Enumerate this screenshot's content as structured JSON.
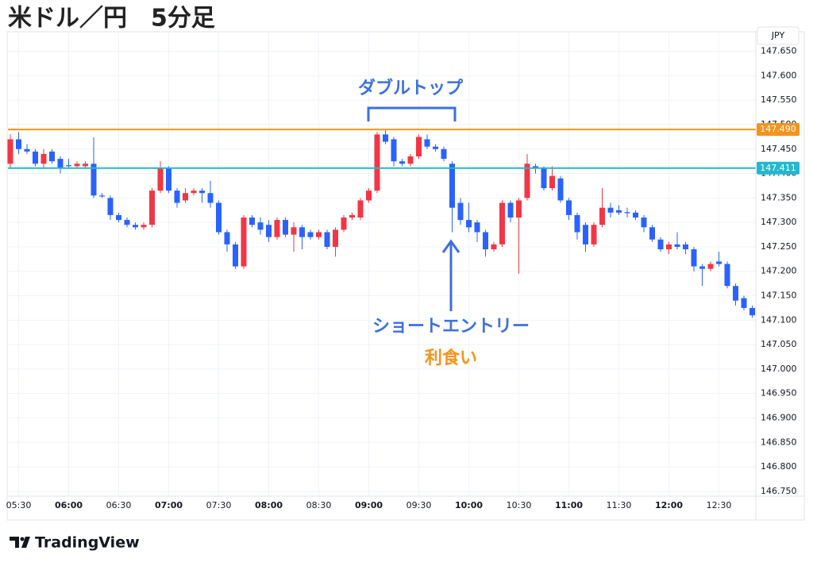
{
  "chart_data": {
    "type": "candlestick",
    "title": "米ドル／円　5分足",
    "currency": "JPY",
    "brand": "TradingView",
    "annotations": {
      "pattern": "ダブルトップ",
      "entry": "ショートエントリー",
      "exit": "利食い"
    },
    "up_color": "#f23645",
    "down_color": "#2962ff",
    "grid": true,
    "x": [
      "05:25",
      "05:30",
      "05:35",
      "05:40",
      "05:45",
      "05:50",
      "05:55",
      "06:00",
      "06:05",
      "06:10",
      "06:15",
      "06:20",
      "06:25",
      "06:30",
      "06:35",
      "06:40",
      "06:45",
      "06:50",
      "06:55",
      "07:00",
      "07:05",
      "07:10",
      "07:15",
      "07:20",
      "07:25",
      "07:30",
      "07:35",
      "07:40",
      "07:45",
      "07:50",
      "07:55",
      "08:00",
      "08:05",
      "08:10",
      "08:15",
      "08:20",
      "08:25",
      "08:30",
      "08:35",
      "08:40",
      "08:45",
      "08:50",
      "08:55",
      "09:00",
      "09:05",
      "09:10",
      "09:15",
      "09:20",
      "09:25",
      "09:30",
      "09:35",
      "09:40",
      "09:45",
      "09:50",
      "09:55",
      "10:00",
      "10:05",
      "10:10",
      "10:15",
      "10:20",
      "10:25",
      "10:30",
      "10:35",
      "10:40",
      "10:45",
      "10:50",
      "10:55",
      "11:00",
      "11:05",
      "11:10",
      "11:15",
      "11:20",
      "11:25",
      "11:30",
      "11:35",
      "11:40",
      "11:45",
      "11:50",
      "11:55",
      "12:00",
      "12:05",
      "12:10",
      "12:15",
      "12:20",
      "12:25",
      "12:30",
      "12:35",
      "12:40",
      "12:45",
      "12:50"
    ],
    "open": [
      147.42,
      147.47,
      147.45,
      147.445,
      147.42,
      147.445,
      147.43,
      147.417,
      147.415,
      147.415,
      147.42,
      147.355,
      147.35,
      147.315,
      147.305,
      147.295,
      147.29,
      147.295,
      147.365,
      147.41,
      147.365,
      147.345,
      147.36,
      147.365,
      147.36,
      147.34,
      147.28,
      147.255,
      147.21,
      147.31,
      147.3,
      147.295,
      147.27,
      147.305,
      147.275,
      147.29,
      147.28,
      147.27,
      147.28,
      147.25,
      147.285,
      147.31,
      147.31,
      147.345,
      147.365,
      147.48,
      147.47,
      147.425,
      147.42,
      147.435,
      147.47,
      147.455,
      147.45,
      147.42,
      147.34,
      147.305,
      147.3,
      147.28,
      147.245,
      147.255,
      147.34,
      147.31,
      147.35,
      147.415,
      147.41,
      147.37,
      147.39,
      147.345,
      147.315,
      147.295,
      147.255,
      147.295,
      147.33,
      147.325,
      147.321,
      147.32,
      147.31,
      147.29,
      147.265,
      147.245,
      147.255,
      147.255,
      147.245,
      147.21,
      147.205,
      147.22,
      147.215,
      147.17,
      147.145,
      147.125
    ],
    "high": [
      147.48,
      147.485,
      147.46,
      147.45,
      147.45,
      147.45,
      147.435,
      147.43,
      147.425,
      147.425,
      147.474,
      147.36,
      147.355,
      147.32,
      147.31,
      147.3,
      147.3,
      147.37,
      147.425,
      147.415,
      147.37,
      147.37,
      147.37,
      147.37,
      147.385,
      147.345,
      147.285,
      147.26,
      147.315,
      147.315,
      147.31,
      147.305,
      147.31,
      147.31,
      147.3,
      147.295,
      147.285,
      147.285,
      147.285,
      147.29,
      147.315,
      147.32,
      147.35,
      147.37,
      147.485,
      147.49,
      147.475,
      147.43,
      147.44,
      147.48,
      147.48,
      147.46,
      147.455,
      147.425,
      147.35,
      147.34,
      147.305,
      147.285,
      147.26,
      147.345,
      147.345,
      147.35,
      147.44,
      147.42,
      147.415,
      147.415,
      147.395,
      147.35,
      147.32,
      147.3,
      147.3,
      147.37,
      147.34,
      147.335,
      147.33,
      147.325,
      147.315,
      147.295,
      147.27,
      147.26,
      147.28,
      147.26,
      147.25,
      147.215,
      147.22,
      147.24,
      147.22,
      147.175,
      147.15,
      147.13
    ],
    "low": [
      147.41,
      147.44,
      147.44,
      147.415,
      147.41,
      147.42,
      147.4,
      147.41,
      147.41,
      147.41,
      147.35,
      147.35,
      147.305,
      147.3,
      147.29,
      147.285,
      147.285,
      147.29,
      147.36,
      147.36,
      147.33,
      147.34,
      147.355,
      147.34,
      147.33,
      147.275,
      147.24,
      147.205,
      147.205,
      147.29,
      147.275,
      147.26,
      147.265,
      147.27,
      147.24,
      147.245,
      147.265,
      147.265,
      147.245,
      147.23,
      147.28,
      147.305,
      147.305,
      147.34,
      147.36,
      147.46,
      147.415,
      147.415,
      147.415,
      147.43,
      147.45,
      147.445,
      147.425,
      147.28,
      147.295,
      147.28,
      147.26,
      147.23,
      147.24,
      147.25,
      147.3,
      147.195,
      147.345,
      147.4,
      147.365,
      147.365,
      147.34,
      147.305,
      147.265,
      147.24,
      147.25,
      147.29,
      147.31,
      147.315,
      147.31,
      147.305,
      147.28,
      147.26,
      147.24,
      147.235,
      147.245,
      147.235,
      147.2,
      147.17,
      147.2,
      147.21,
      147.165,
      147.13,
      147.12,
      147.105
    ],
    "close": [
      147.47,
      147.45,
      147.445,
      147.42,
      147.44,
      147.425,
      147.41,
      147.415,
      147.42,
      147.42,
      147.355,
      147.353,
      147.315,
      147.305,
      147.295,
      147.29,
      147.295,
      147.365,
      147.41,
      147.365,
      147.34,
      147.36,
      147.365,
      147.36,
      147.34,
      147.28,
      147.255,
      147.21,
      147.31,
      147.295,
      147.285,
      147.27,
      147.305,
      147.275,
      147.29,
      147.27,
      147.27,
      147.28,
      147.25,
      147.285,
      147.31,
      147.315,
      147.345,
      147.365,
      147.48,
      147.465,
      147.425,
      147.42,
      147.435,
      147.475,
      147.455,
      147.45,
      147.43,
      147.33,
      147.305,
      147.29,
      147.28,
      147.245,
      147.255,
      147.34,
      147.31,
      147.345,
      147.42,
      147.41,
      147.37,
      147.395,
      147.345,
      147.315,
      147.28,
      147.255,
      147.295,
      147.33,
      147.32,
      147.32,
      147.319,
      147.31,
      147.29,
      147.265,
      147.245,
      147.255,
      147.25,
      147.245,
      147.21,
      147.205,
      147.215,
      147.215,
      147.17,
      147.14,
      147.125,
      147.11
    ],
    "xticks": [
      "05:30",
      "06:00",
      "06:30",
      "07:00",
      "07:30",
      "08:00",
      "08:30",
      "09:00",
      "09:30",
      "10:00",
      "10:30",
      "11:00",
      "11:30",
      "12:00",
      "12:30"
    ],
    "ylim": [
      146.74,
      147.69
    ],
    "yticks": [
      {
        "value": 146.75,
        "label": "146.750"
      },
      {
        "value": 146.8,
        "label": "146.800"
      },
      {
        "value": 146.85,
        "label": "146.850"
      },
      {
        "value": 146.9,
        "label": "146.900"
      },
      {
        "value": 146.95,
        "label": "146.950"
      },
      {
        "value": 147,
        "label": "147.000"
      },
      {
        "value": 147.05,
        "label": "147.050"
      },
      {
        "value": 147.1,
        "label": "147.100"
      },
      {
        "value": 147.15,
        "label": "147.150"
      },
      {
        "value": 147.2,
        "label": "147.200"
      },
      {
        "value": 147.25,
        "label": "147.250"
      },
      {
        "value": 147.3,
        "label": "147.300"
      },
      {
        "value": 147.35,
        "label": "147.350"
      },
      {
        "value": 147.4,
        "label": "147.400"
      },
      {
        "value": 147.45,
        "label": "147.450"
      },
      {
        "value": 147.5,
        "label": "147.500"
      },
      {
        "value": 147.55,
        "label": "147.550"
      },
      {
        "value": 147.6,
        "label": "147.600"
      },
      {
        "value": 147.65,
        "label": "147.650"
      }
    ],
    "hlines": [
      {
        "value": 147.49,
        "label": "147.490",
        "color": "#f7931a"
      },
      {
        "value": 147.411,
        "label": "147.411",
        "color": "#22b8cf"
      }
    ]
  }
}
